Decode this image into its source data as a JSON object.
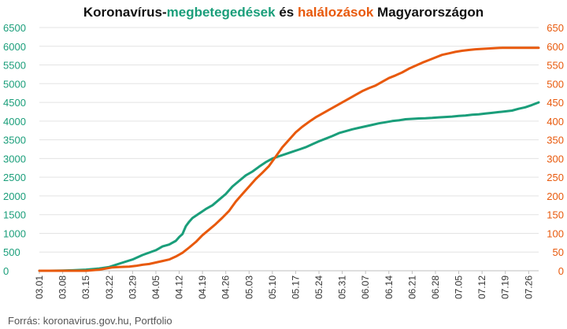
{
  "chart_data": {
    "type": "line",
    "title_parts": [
      {
        "text": "Koronavírus-",
        "color": "#111111"
      },
      {
        "text": "megbetegedések",
        "color": "#1a9e7a"
      },
      {
        "text": " és ",
        "color": "#111111"
      },
      {
        "text": "halálozások",
        "color": "#e8590c"
      },
      {
        "text": " Magyarországon",
        "color": "#111111"
      }
    ],
    "x_tick_labels": [
      "03.01",
      "03.08",
      "03.15",
      "03.22",
      "03.29",
      "04.05",
      "04.12",
      "04.19",
      "04.26",
      "05.03",
      "05.10",
      "05.17",
      "05.24",
      "05.31",
      "06.07",
      "06.14",
      "06.21",
      "06.28",
      "07.05",
      "07.12",
      "07.19",
      "07.26"
    ],
    "x_range_days": [
      0,
      150
    ],
    "y_left": {
      "range": [
        0,
        6500
      ],
      "ticks": [
        0,
        500,
        1000,
        1500,
        2000,
        2500,
        3000,
        3500,
        4000,
        4500,
        5000,
        5500,
        6000,
        6500
      ],
      "color": "#1a9e7a"
    },
    "y_right": {
      "range": [
        0,
        650
      ],
      "ticks": [
        0,
        50,
        100,
        150,
        200,
        250,
        300,
        350,
        400,
        450,
        500,
        550,
        600,
        650
      ],
      "color": "#e8590c"
    },
    "grid": "horizontal",
    "series": [
      {
        "name": "megbetegedések",
        "axis": "left",
        "color": "#1a9e7a",
        "points": [
          [
            0,
            0
          ],
          [
            3,
            0
          ],
          [
            7,
            5
          ],
          [
            10,
            13
          ],
          [
            14,
            30
          ],
          [
            18,
            60
          ],
          [
            21,
            100
          ],
          [
            24,
            190
          ],
          [
            28,
            300
          ],
          [
            31,
            420
          ],
          [
            35,
            550
          ],
          [
            37,
            650
          ],
          [
            39,
            700
          ],
          [
            41,
            800
          ],
          [
            42,
            900
          ],
          [
            43,
            980
          ],
          [
            44,
            1190
          ],
          [
            45,
            1310
          ],
          [
            46,
            1410
          ],
          [
            48,
            1530
          ],
          [
            50,
            1650
          ],
          [
            52,
            1750
          ],
          [
            54,
            1900
          ],
          [
            56,
            2050
          ],
          [
            58,
            2250
          ],
          [
            60,
            2400
          ],
          [
            62,
            2550
          ],
          [
            64,
            2650
          ],
          [
            66,
            2780
          ],
          [
            68,
            2900
          ],
          [
            70,
            3000
          ],
          [
            72,
            3060
          ],
          [
            74,
            3120
          ],
          [
            76,
            3180
          ],
          [
            78,
            3240
          ],
          [
            80,
            3300
          ],
          [
            82,
            3380
          ],
          [
            84,
            3460
          ],
          [
            86,
            3530
          ],
          [
            88,
            3600
          ],
          [
            90,
            3680
          ],
          [
            92,
            3730
          ],
          [
            94,
            3780
          ],
          [
            96,
            3820
          ],
          [
            98,
            3860
          ],
          [
            100,
            3900
          ],
          [
            102,
            3940
          ],
          [
            104,
            3970
          ],
          [
            106,
            4000
          ],
          [
            108,
            4020
          ],
          [
            110,
            4050
          ],
          [
            112,
            4060
          ],
          [
            114,
            4070
          ],
          [
            116,
            4075
          ],
          [
            118,
            4085
          ],
          [
            120,
            4100
          ],
          [
            122,
            4110
          ],
          [
            124,
            4120
          ],
          [
            126,
            4140
          ],
          [
            128,
            4150
          ],
          [
            130,
            4170
          ],
          [
            132,
            4180
          ],
          [
            134,
            4200
          ],
          [
            136,
            4220
          ],
          [
            138,
            4240
          ],
          [
            140,
            4260
          ],
          [
            142,
            4280
          ],
          [
            144,
            4330
          ],
          [
            146,
            4370
          ],
          [
            148,
            4430
          ],
          [
            150,
            4500
          ]
        ]
      },
      {
        "name": "halálozások",
        "axis": "right",
        "color": "#e8590c",
        "points": [
          [
            0,
            0
          ],
          [
            10,
            0
          ],
          [
            14,
            0
          ],
          [
            18,
            3
          ],
          [
            20,
            6
          ],
          [
            22,
            9
          ],
          [
            24,
            10
          ],
          [
            27,
            11
          ],
          [
            29,
            13
          ],
          [
            31,
            16
          ],
          [
            33,
            18
          ],
          [
            35,
            22
          ],
          [
            37,
            26
          ],
          [
            39,
            30
          ],
          [
            41,
            38
          ],
          [
            43,
            48
          ],
          [
            45,
            62
          ],
          [
            47,
            77
          ],
          [
            49,
            95
          ],
          [
            51,
            110
          ],
          [
            53,
            125
          ],
          [
            55,
            142
          ],
          [
            57,
            160
          ],
          [
            59,
            185
          ],
          [
            61,
            205
          ],
          [
            63,
            225
          ],
          [
            65,
            245
          ],
          [
            67,
            262
          ],
          [
            69,
            280
          ],
          [
            71,
            305
          ],
          [
            73,
            330
          ],
          [
            75,
            350
          ],
          [
            77,
            370
          ],
          [
            79,
            385
          ],
          [
            81,
            398
          ],
          [
            83,
            410
          ],
          [
            85,
            420
          ],
          [
            87,
            430
          ],
          [
            89,
            440
          ],
          [
            91,
            450
          ],
          [
            93,
            460
          ],
          [
            95,
            470
          ],
          [
            97,
            480
          ],
          [
            99,
            488
          ],
          [
            101,
            495
          ],
          [
            103,
            505
          ],
          [
            105,
            515
          ],
          [
            107,
            522
          ],
          [
            109,
            530
          ],
          [
            111,
            540
          ],
          [
            113,
            548
          ],
          [
            115,
            556
          ],
          [
            117,
            563
          ],
          [
            119,
            570
          ],
          [
            121,
            577
          ],
          [
            123,
            581
          ],
          [
            125,
            585
          ],
          [
            127,
            588
          ],
          [
            129,
            590
          ],
          [
            131,
            592
          ],
          [
            133,
            593
          ],
          [
            135,
            594
          ],
          [
            137,
            595
          ],
          [
            139,
            596
          ],
          [
            141,
            596
          ],
          [
            143,
            596
          ],
          [
            145,
            596
          ],
          [
            147,
            596
          ],
          [
            150,
            596
          ]
        ]
      }
    ],
    "source": "Forrás: koronavirus.gov.hu, Portfolio"
  }
}
